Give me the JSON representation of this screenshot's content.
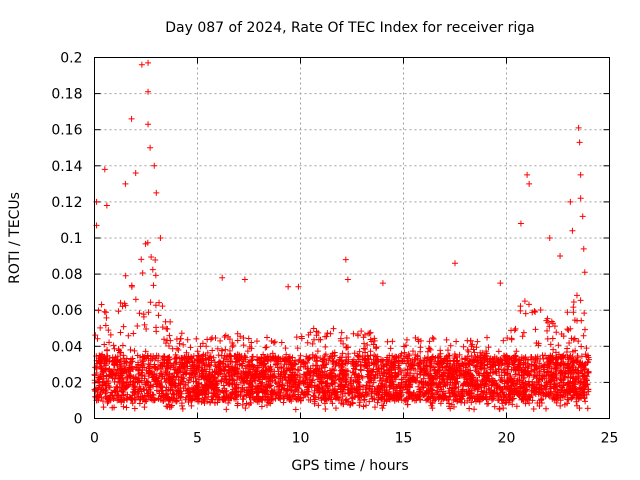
{
  "chart_data": {
    "type": "scatter",
    "title": "Day 087 of 2024, Rate Of TEC Index for receiver riga",
    "xlabel": "GPS time / hours",
    "ylabel": "ROTI / TECUs",
    "xlim": [
      0,
      25
    ],
    "ylim": [
      0,
      0.2
    ],
    "xticks": [
      "0",
      "5",
      "10",
      "15",
      "20",
      "25"
    ],
    "yticks": [
      "0",
      "0.02",
      "0.04",
      "0.06",
      "0.08",
      "0.1",
      "0.12",
      "0.14",
      "0.16",
      "0.18",
      "0.2"
    ],
    "grid": true,
    "marker": "+",
    "series_color": "#ff0000",
    "envelope": {
      "x": [
        0,
        0.25,
        0.5,
        1,
        1.5,
        2,
        2.5,
        3,
        3.5,
        4,
        5,
        6,
        7,
        8,
        9,
        10,
        11,
        12,
        13,
        14,
        15,
        16,
        17,
        18,
        19,
        20,
        20.5,
        21,
        21.5,
        22,
        22.5,
        23,
        23.5,
        24
      ],
      "y_typical_max": [
        0.045,
        0.07,
        0.06,
        0.05,
        0.08,
        0.09,
        0.1,
        0.09,
        0.06,
        0.05,
        0.045,
        0.045,
        0.05,
        0.045,
        0.045,
        0.05,
        0.05,
        0.05,
        0.05,
        0.045,
        0.045,
        0.045,
        0.045,
        0.045,
        0.045,
        0.045,
        0.06,
        0.07,
        0.065,
        0.06,
        0.05,
        0.06,
        0.07,
        0.05
      ]
    },
    "notable_points": [
      {
        "x": 0.1,
        "y": 0.12
      },
      {
        "x": 0.1,
        "y": 0.107
      },
      {
        "x": 0.5,
        "y": 0.138
      },
      {
        "x": 0.6,
        "y": 0.118
      },
      {
        "x": 1.5,
        "y": 0.13
      },
      {
        "x": 1.8,
        "y": 0.166
      },
      {
        "x": 2.0,
        "y": 0.136
      },
      {
        "x": 2.3,
        "y": 0.196
      },
      {
        "x": 2.6,
        "y": 0.197
      },
      {
        "x": 2.6,
        "y": 0.181
      },
      {
        "x": 2.6,
        "y": 0.163
      },
      {
        "x": 2.7,
        "y": 0.15
      },
      {
        "x": 2.9,
        "y": 0.14
      },
      {
        "x": 3.0,
        "y": 0.125
      },
      {
        "x": 3.2,
        "y": 0.1
      },
      {
        "x": 6.2,
        "y": 0.078
      },
      {
        "x": 7.3,
        "y": 0.077
      },
      {
        "x": 9.4,
        "y": 0.073
      },
      {
        "x": 9.9,
        "y": 0.073
      },
      {
        "x": 12.2,
        "y": 0.088
      },
      {
        "x": 12.3,
        "y": 0.077
      },
      {
        "x": 14.0,
        "y": 0.075
      },
      {
        "x": 17.5,
        "y": 0.086
      },
      {
        "x": 19.7,
        "y": 0.075
      },
      {
        "x": 21.0,
        "y": 0.135
      },
      {
        "x": 21.1,
        "y": 0.13
      },
      {
        "x": 20.7,
        "y": 0.108
      },
      {
        "x": 22.1,
        "y": 0.1
      },
      {
        "x": 22.6,
        "y": 0.09
      },
      {
        "x": 23.1,
        "y": 0.12
      },
      {
        "x": 23.2,
        "y": 0.104
      },
      {
        "x": 23.5,
        "y": 0.161
      },
      {
        "x": 23.55,
        "y": 0.153
      },
      {
        "x": 23.6,
        "y": 0.135
      },
      {
        "x": 23.6,
        "y": 0.122
      },
      {
        "x": 23.7,
        "y": 0.112
      },
      {
        "x": 23.75,
        "y": 0.094
      },
      {
        "x": 23.8,
        "y": 0.081
      }
    ]
  }
}
